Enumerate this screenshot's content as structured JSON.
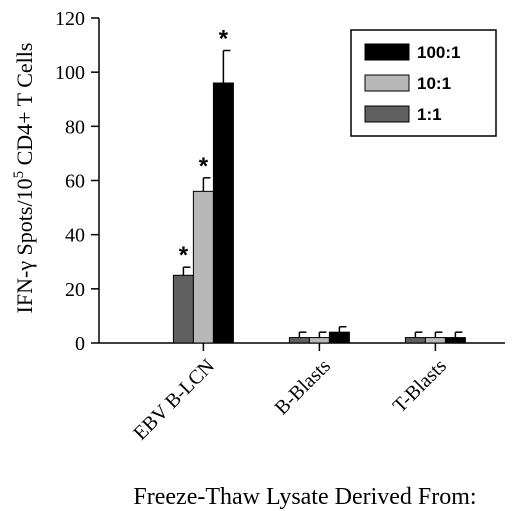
{
  "chart_data": {
    "type": "bar",
    "categories": [
      "EBV B-LCN",
      "B-Blasts",
      "T-Blasts"
    ],
    "series": [
      {
        "name": "1:1",
        "color": "#606060",
        "values": [
          25,
          2,
          2
        ],
        "errors": [
          3,
          2,
          2
        ]
      },
      {
        "name": "10:1",
        "color": "#b8b8b8",
        "values": [
          56,
          2,
          2
        ],
        "errors": [
          5,
          2,
          2
        ]
      },
      {
        "name": "100:1",
        "color": "#000000",
        "values": [
          96,
          4,
          2
        ],
        "errors": [
          12,
          2,
          2
        ]
      }
    ],
    "significance": [
      {
        "category": 0,
        "series": 0,
        "label": "*"
      },
      {
        "category": 0,
        "series": 1,
        "label": "*"
      },
      {
        "category": 0,
        "series": 2,
        "label": "*"
      }
    ],
    "legend_order": [
      2,
      1,
      0
    ],
    "legend_position": "top-right",
    "ylabel_pre": "IFN-γ Spots/10",
    "ylabel_sup": "5",
    "ylabel_post": " CD4+ T Cells",
    "xlabel": "Freeze-Thaw Lysate Derived From:",
    "ylim": [
      0,
      120
    ],
    "yticks": [
      0,
      20,
      40,
      60,
      80,
      100,
      120
    ],
    "grid": false
  }
}
